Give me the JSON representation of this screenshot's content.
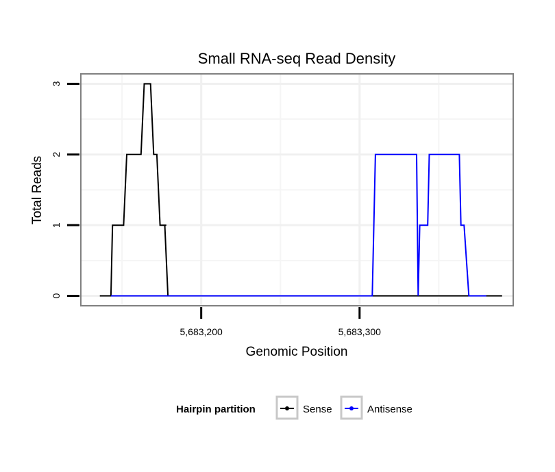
{
  "chart_data": {
    "type": "line",
    "title": "Small RNA-seq Read Density",
    "xlabel": "Genomic Position",
    "ylabel": "Total Reads",
    "xlim": [
      5683124,
      5683397
    ],
    "ylim": [
      -0.14,
      3.14
    ],
    "x_ticks": [
      {
        "value": 5683200,
        "label": "5,683,200"
      },
      {
        "value": 5683300,
        "label": "5,683,300"
      }
    ],
    "y_ticks": [
      {
        "value": 0,
        "label": "0"
      },
      {
        "value": 1,
        "label": "1"
      },
      {
        "value": 2,
        "label": "2"
      },
      {
        "value": 3,
        "label": "3"
      }
    ],
    "legend": {
      "title": "Hairpin partition",
      "position": "bottom"
    },
    "series": [
      {
        "name": "Sense",
        "color": "#000000",
        "x": [
          5683136,
          5683143,
          5683144,
          5683151,
          5683153,
          5683160,
          5683162,
          5683164,
          5683165,
          5683168,
          5683170,
          5683172,
          5683174,
          5683177,
          5683178,
          5683177,
          5683179,
          5683390
        ],
        "y": [
          0,
          0,
          1,
          1,
          2,
          2,
          2,
          3,
          3,
          3,
          2,
          2,
          1,
          1,
          1,
          1,
          0,
          0
        ]
      },
      {
        "name": "Antisense",
        "color": "#0000ff",
        "x": [
          5683143,
          5683179,
          5683187,
          5683308,
          5683310,
          5683335,
          5683336,
          5683337,
          5683338,
          5683340,
          5683342,
          5683343,
          5683344,
          5683356,
          5683361,
          5683363,
          5683364,
          5683365,
          5683366,
          5683369,
          5683370,
          5683380
        ],
        "y": [
          0,
          0,
          0,
          0,
          2,
          2,
          2,
          0,
          1,
          1,
          1,
          1,
          2,
          2,
          2,
          2,
          1,
          1,
          1,
          0,
          0,
          0
        ]
      }
    ]
  }
}
